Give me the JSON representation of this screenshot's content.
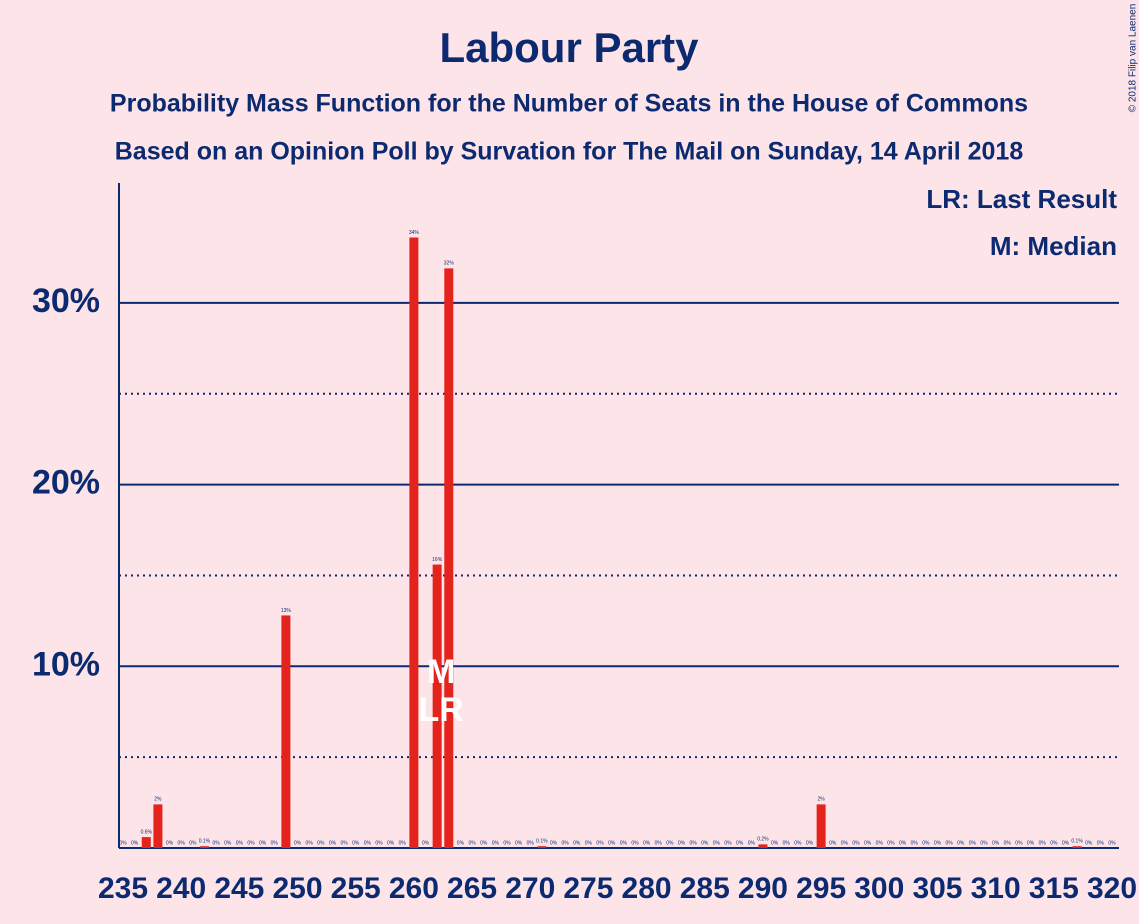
{
  "chart_data": {
    "type": "bar",
    "title": "Labour Party",
    "subtitle": "Probability Mass Function for the Number of Seats in the House of Commons",
    "subtitle2": "Based on an Opinion Poll by Survation for The Mail on Sunday, 14 April 2018",
    "copyright": "© 2018 Filip van Laenen",
    "legend": [
      "LR: Last Result",
      "M: Median"
    ],
    "color": "#e3231c",
    "x": [
      235,
      236,
      237,
      238,
      239,
      240,
      241,
      242,
      243,
      244,
      245,
      246,
      247,
      248,
      249,
      250,
      251,
      252,
      253,
      254,
      255,
      256,
      257,
      258,
      259,
      260,
      261,
      262,
      263,
      264,
      265,
      266,
      267,
      268,
      269,
      270,
      271,
      272,
      273,
      274,
      275,
      276,
      277,
      278,
      279,
      280,
      281,
      282,
      283,
      284,
      285,
      286,
      287,
      288,
      289,
      290,
      291,
      292,
      293,
      294,
      295,
      296,
      297,
      298,
      299,
      300,
      301,
      302,
      303,
      304,
      305,
      306,
      307,
      308,
      309,
      310,
      311,
      312,
      313,
      314,
      315,
      316,
      317,
      318,
      319,
      320
    ],
    "values": [
      0,
      0,
      0.6,
      2.4,
      0,
      0,
      0,
      0.1,
      0,
      0,
      0,
      0,
      0,
      0,
      12.8,
      0,
      0,
      0,
      0,
      0,
      0,
      0,
      0,
      0,
      0,
      33.6,
      0,
      15.6,
      31.9,
      0,
      0,
      0,
      0,
      0,
      0,
      0,
      0.1,
      0,
      0,
      0,
      0,
      0,
      0,
      0,
      0,
      0,
      0,
      0,
      0,
      0,
      0,
      0,
      0,
      0,
      0,
      0.2,
      0,
      0,
      0,
      0,
      2.4,
      0,
      0,
      0,
      0,
      0,
      0,
      0,
      0,
      0,
      0,
      0,
      0,
      0,
      0,
      0,
      0,
      0,
      0,
      0,
      0,
      0,
      0.1,
      0,
      0,
      0
    ],
    "value_labels": [
      "0%",
      "0%",
      "0.6%",
      "2%",
      "0%",
      "0%",
      "0%",
      "0.1%",
      "0%",
      "0%",
      "0%",
      "0%",
      "0%",
      "0%",
      "13%",
      "0%",
      "0%",
      "0%",
      "0%",
      "0%",
      "0%",
      "0%",
      "0%",
      "0%",
      "0%",
      "34%",
      "0%",
      "16%",
      "32%",
      "0%",
      "0%",
      "0%",
      "0%",
      "0%",
      "0%",
      "0%",
      "0.1%",
      "0%",
      "0%",
      "0%",
      "0%",
      "0%",
      "0%",
      "0%",
      "0%",
      "0%",
      "0%",
      "0%",
      "0%",
      "0%",
      "0%",
      "0%",
      "0%",
      "0%",
      "0%",
      "0.2%",
      "0%",
      "0%",
      "0%",
      "0%",
      "2%",
      "0%",
      "0%",
      "0%",
      "0%",
      "0%",
      "0%",
      "0%",
      "0%",
      "0%",
      "0%",
      "0%",
      "0%",
      "0%",
      "0%",
      "0%",
      "0%",
      "0%",
      "0%",
      "0%",
      "0%",
      "0%",
      "0.1%",
      "0%",
      "0%",
      "0%"
    ],
    "xlim": [
      234.5,
      320.5
    ],
    "xticks": [
      235,
      240,
      245,
      250,
      255,
      260,
      265,
      270,
      275,
      280,
      285,
      290,
      295,
      300,
      305,
      310,
      315,
      320
    ],
    "ylim": [
      0,
      36.6
    ],
    "yticks": [
      {
        "value": 10,
        "label": "10%"
      },
      {
        "value": 20,
        "label": "20%"
      },
      {
        "value": 30,
        "label": "30%"
      }
    ],
    "minor_yticks": [
      5,
      15,
      25
    ],
    "grid": true,
    "median": {
      "x": 262,
      "label": "M"
    },
    "last_result": {
      "x": 262,
      "label": "LR"
    }
  }
}
